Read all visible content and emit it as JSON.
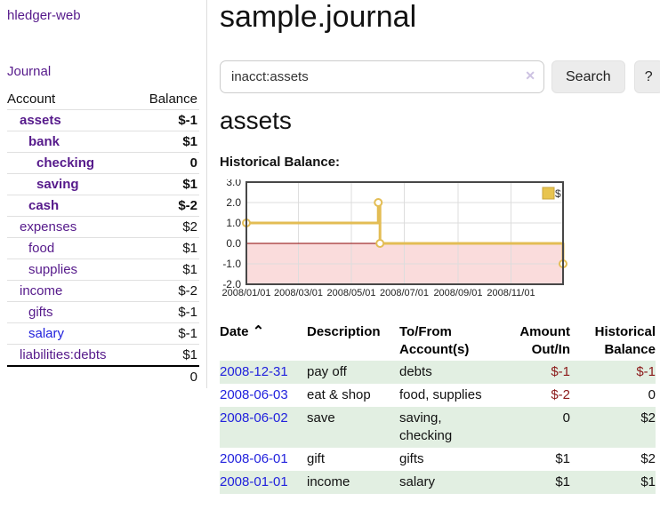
{
  "app": {
    "title": "hledger-web"
  },
  "sidebar": {
    "journal_label": "Journal",
    "accounts": {
      "account_header": "Account",
      "balance_header": "Balance",
      "rows": [
        {
          "account": "assets",
          "balance": "$-1",
          "indent": 1,
          "bold": true,
          "balance_style": "negative-strong",
          "link_style": "visited"
        },
        {
          "account": "bank",
          "balance": "$1",
          "indent": 2,
          "bold": true,
          "balance_style": "normal",
          "link_style": "visited"
        },
        {
          "account": "checking",
          "balance": "0",
          "indent": 3,
          "bold": true,
          "balance_style": "normal",
          "link_style": "visited"
        },
        {
          "account": "saving",
          "balance": "$1",
          "indent": 3,
          "bold": true,
          "balance_style": "normal",
          "link_style": "visited"
        },
        {
          "account": "cash",
          "balance": "$-2",
          "indent": 2,
          "bold": true,
          "balance_style": "negative-strong",
          "link_style": "visited"
        },
        {
          "account": "expenses",
          "balance": "$2",
          "indent": 1,
          "bold": false,
          "balance_style": "normal",
          "link_style": "visited"
        },
        {
          "account": "food",
          "balance": "$1",
          "indent": 2,
          "bold": false,
          "balance_style": "normal",
          "link_style": "visited"
        },
        {
          "account": "supplies",
          "balance": "$1",
          "indent": 2,
          "bold": false,
          "balance_style": "normal",
          "link_style": "visited"
        },
        {
          "account": "income",
          "balance": "$-2",
          "indent": 1,
          "bold": false,
          "balance_style": "negative-muted",
          "link_style": "visited"
        },
        {
          "account": "gifts",
          "balance": "$-1",
          "indent": 2,
          "bold": false,
          "balance_style": "negative-muted",
          "link_style": "visited"
        },
        {
          "account": "salary",
          "balance": "$-1",
          "indent": 2,
          "bold": false,
          "balance_style": "negative-muted",
          "link_style": "unvisited"
        },
        {
          "account": "liabilities:debts",
          "balance": "$1",
          "indent": 1,
          "bold": false,
          "balance_style": "normal",
          "link_style": "visited"
        }
      ],
      "total": "0"
    }
  },
  "main": {
    "title": "sample.journal",
    "search": {
      "value": "inacct:assets",
      "clear_icon": "✕",
      "button_label": "Search",
      "help_label": "?"
    },
    "section_title": "assets",
    "chart_label": "Historical Balance:"
  },
  "chart_data": {
    "type": "line",
    "step": true,
    "title": "Historical Balance:",
    "series": [
      {
        "name": "$",
        "points": [
          {
            "date": "2008-01-01",
            "value": 1
          },
          {
            "date": "2008-06-01",
            "value": 2
          },
          {
            "date": "2008-06-03",
            "value": 0
          },
          {
            "date": "2008-12-31",
            "value": -1
          }
        ]
      }
    ],
    "x_range": [
      "2008-01-01",
      "2008-12-31"
    ],
    "ylim": [
      -2,
      3
    ],
    "yticks": [
      3,
      2,
      1,
      0,
      -1,
      -2
    ],
    "xticks": [
      {
        "date": "2008-01-01",
        "label": "2008/01/01"
      },
      {
        "date": "2008-03-01",
        "label": "2008/03/01"
      },
      {
        "date": "2008-05-01",
        "label": "2008/05/01"
      },
      {
        "date": "2008-07-01",
        "label": "2008/07/01"
      },
      {
        "date": "2008-09-01",
        "label": "2008/09/01"
      },
      {
        "date": "2008-11-01",
        "label": "2008/11/01"
      }
    ],
    "legend_position": "top-right",
    "grid": true,
    "colors": {
      "line": "#e3bd54",
      "legend_fill": "#e8c44f",
      "legend_border": "#c9a43c",
      "negative_fill": "#fadcdc",
      "zero_line": "#8b0000"
    }
  },
  "register": {
    "headers": [
      "Date",
      "Description",
      "To/From Account(s)",
      "Amount Out/In",
      "Historical Balance"
    ],
    "sort_icon": "⌃",
    "rows": [
      {
        "date": "2008-12-31",
        "description": "pay off",
        "accounts": "debts",
        "amount": "$-1",
        "amount_negative": true,
        "balance": "$-1",
        "balance_negative": true
      },
      {
        "date": "2008-06-03",
        "description": "eat & shop",
        "accounts": "food, supplies",
        "amount": "$-2",
        "amount_negative": true,
        "balance": "0",
        "balance_negative": false
      },
      {
        "date": "2008-06-02",
        "description": "save",
        "accounts": "saving, checking",
        "amount": "0",
        "amount_negative": false,
        "balance": "$2",
        "balance_negative": false
      },
      {
        "date": "2008-06-01",
        "description": "gift",
        "accounts": "gifts",
        "amount": "$1",
        "amount_negative": false,
        "balance": "$2",
        "balance_negative": false
      },
      {
        "date": "2008-01-01",
        "description": "income",
        "accounts": "salary",
        "amount": "$1",
        "amount_negative": false,
        "balance": "$1",
        "balance_negative": false
      }
    ]
  },
  "colors": {
    "link_purple": "#561a8b",
    "link_blue": "#2222dd",
    "negative_strong": "#8b1a1a",
    "negative_muted": "#b56a76",
    "row_green": "#e2efe2",
    "button_gray": "#ececec"
  }
}
